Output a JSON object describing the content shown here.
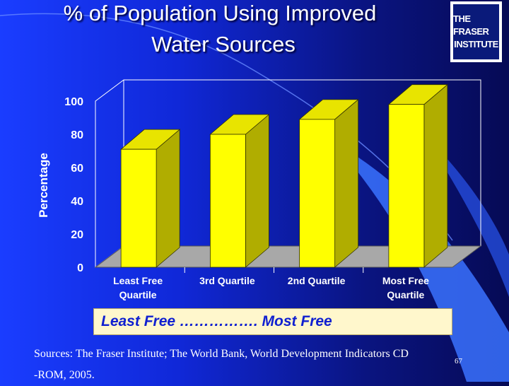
{
  "slide": {
    "title_line_1": "% of Population Using Improved",
    "title_line_2": "Water Sources",
    "logo_line_1": "THE FRASER",
    "logo_line_2": "INSTITUTE",
    "banner_text": "Least Free ……………. Most Free",
    "sources_line_1": "Sources: The Fraser Institute; The World Bank, World Development Indicators CD",
    "sources_line_2": "-ROM, 2005.",
    "page_number": "67"
  },
  "colors": {
    "bar_front": "#ffff00",
    "bar_side": "#b0ad00",
    "bar_top": "#e8e400",
    "floor": "#a8a8a8",
    "banner_text": "#1020d0"
  },
  "chart_data": {
    "type": "bar",
    "title": "% of Population Using Improved Water Sources",
    "categories": [
      [
        "Least Free",
        "Quartile"
      ],
      [
        "3rd Quartile"
      ],
      [
        "2nd Quartile"
      ],
      [
        "Most Free",
        "Quartile"
      ]
    ],
    "values": [
      71,
      80,
      89,
      98
    ],
    "ylabel": "Percentage",
    "xlabel": "",
    "ylim": [
      0,
      100
    ],
    "yticks": [
      0,
      20,
      40,
      60,
      80,
      100
    ],
    "grid": false,
    "legend": false,
    "style": "3d"
  }
}
